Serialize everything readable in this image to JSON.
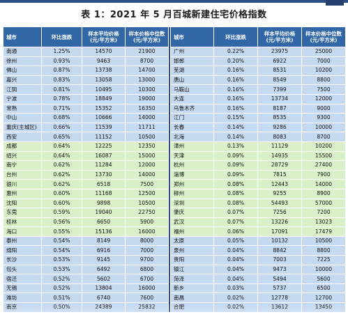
{
  "title": "表 1：2021 年 5 月百城新建住宅价格指数",
  "table": {
    "headers": [
      "城市",
      "环比涨跌",
      "样本平均价格\n(元/平方米)",
      "样本价格中位数\n(元/平方米)"
    ],
    "left": [
      {
        "city": "南通",
        "change": "1.25%",
        "avg": "14570",
        "median": "21900",
        "group": "blue"
      },
      {
        "city": "徐州",
        "change": "0.93%",
        "avg": "9463",
        "median": "8700",
        "group": "blue"
      },
      {
        "city": "佛山",
        "change": "0.87%",
        "avg": "13738",
        "median": "14700",
        "group": "blue"
      },
      {
        "city": "嘉兴",
        "change": "0.83%",
        "avg": "13058",
        "median": "13000",
        "group": "blue"
      },
      {
        "city": "江阴",
        "change": "0.81%",
        "avg": "10495",
        "median": "10300",
        "group": "blue"
      },
      {
        "city": "宁波",
        "change": "0.78%",
        "avg": "18849",
        "median": "19000",
        "group": "blue"
      },
      {
        "city": "常熟",
        "change": "0.71%",
        "avg": "15352",
        "median": "16350",
        "group": "blue"
      },
      {
        "city": "中山",
        "change": "0.68%",
        "avg": "10666",
        "median": "14000",
        "group": "blue"
      },
      {
        "city": "重庆(主城区)",
        "change": "0.66%",
        "avg": "11539",
        "median": "11711",
        "group": "blue"
      },
      {
        "city": "西安",
        "change": "0.65%",
        "avg": "11152",
        "median": "10500",
        "group": "blue"
      },
      {
        "city": "成都",
        "change": "0.64%",
        "avg": "12225",
        "median": "12350",
        "group": "green"
      },
      {
        "city": "绍兴",
        "change": "0.64%",
        "avg": "16087",
        "median": "15000",
        "group": "green"
      },
      {
        "city": "南宁",
        "change": "0.62%",
        "avg": "11284",
        "median": "12000",
        "group": "green"
      },
      {
        "city": "台州",
        "change": "0.62%",
        "avg": "13730",
        "median": "14000",
        "group": "green"
      },
      {
        "city": "银川",
        "change": "0.62%",
        "avg": "6518",
        "median": "7500",
        "group": "green"
      },
      {
        "city": "惠州",
        "change": "0.60%",
        "avg": "11168",
        "median": "12500",
        "group": "green"
      },
      {
        "city": "沈阳",
        "change": "0.60%",
        "avg": "9898",
        "median": "10500",
        "group": "green"
      },
      {
        "city": "东莞",
        "change": "0.59%",
        "avg": "19040",
        "median": "22750",
        "group": "green"
      },
      {
        "city": "桂林",
        "change": "0.56%",
        "avg": "6650",
        "median": "5900",
        "group": "green"
      },
      {
        "city": "海口",
        "change": "0.55%",
        "avg": "15136",
        "median": "16000",
        "group": "green"
      },
      {
        "city": "泰州",
        "change": "0.54%",
        "avg": "8149",
        "median": "8000",
        "group": "blue"
      },
      {
        "city": "绵阳",
        "change": "0.54%",
        "avg": "6916",
        "median": "7000",
        "group": "blue"
      },
      {
        "city": "长沙",
        "change": "0.53%",
        "avg": "9145",
        "median": "9700",
        "group": "blue"
      },
      {
        "city": "包头",
        "change": "0.53%",
        "avg": "6492",
        "median": "6800",
        "group": "blue"
      },
      {
        "city": "宿迁",
        "change": "0.52%",
        "avg": "5602",
        "median": "6700",
        "group": "blue"
      },
      {
        "city": "无锡",
        "change": "0.52%",
        "avg": "13804",
        "median": "16000",
        "group": "blue"
      },
      {
        "city": "潍坊",
        "change": "0.51%",
        "avg": "6740",
        "median": "7600",
        "group": "blue"
      },
      {
        "city": "南京",
        "change": "0.50%",
        "avg": "24389",
        "median": "25832",
        "group": "blue"
      }
    ],
    "right": [
      {
        "city": "广州",
        "change": "0.22%",
        "avg": "23975",
        "median": "25000"
      },
      {
        "city": "邯郸",
        "change": "0.20%",
        "avg": "6922",
        "median": "7000"
      },
      {
        "city": "芜湖",
        "change": "0.16%",
        "avg": "8531",
        "median": "10200"
      },
      {
        "city": "唐山",
        "change": "0.16%",
        "avg": "8549",
        "median": "8800"
      },
      {
        "city": "马鞍山",
        "change": "0.16%",
        "avg": "7399",
        "median": "7500"
      },
      {
        "city": "大连",
        "change": "0.16%",
        "avg": "13734",
        "median": "12000"
      },
      {
        "city": "乌鲁木齐",
        "change": "0.16%",
        "avg": "8187",
        "median": "9000"
      },
      {
        "city": "江门",
        "change": "0.15%",
        "avg": "8535",
        "median": "9300"
      },
      {
        "city": "长春",
        "change": "0.14%",
        "avg": "9286",
        "median": "10000"
      },
      {
        "city": "北海",
        "change": "0.14%",
        "avg": "8083",
        "median": "8700"
      },
      {
        "city": "漳州",
        "change": "0.13%",
        "avg": "11129",
        "median": "10200"
      },
      {
        "city": "天津",
        "change": "0.09%",
        "avg": "14935",
        "median": "15500"
      },
      {
        "city": "杭州",
        "change": "0.09%",
        "avg": "28729",
        "median": "27400"
      },
      {
        "city": "淄博",
        "change": "0.09%",
        "avg": "7815",
        "median": "7900"
      },
      {
        "city": "郑州",
        "change": "0.08%",
        "avg": "12443",
        "median": "14000"
      },
      {
        "city": "柳州",
        "change": "0.08%",
        "avg": "9255",
        "median": "8900"
      },
      {
        "city": "深圳",
        "change": "0.08%",
        "avg": "54493",
        "median": "57000"
      },
      {
        "city": "肇庆",
        "change": "0.07%",
        "avg": "7256",
        "median": "7200"
      },
      {
        "city": "武汉",
        "change": "0.07%",
        "avg": "13226",
        "median": "13023"
      },
      {
        "city": "福州",
        "change": "0.06%",
        "avg": "17091",
        "median": "17479"
      },
      {
        "city": "太原",
        "change": "0.05%",
        "avg": "10132",
        "median": "10500"
      },
      {
        "city": "泉州",
        "change": "0.04%",
        "avg": "8842",
        "median": "8800"
      },
      {
        "city": "贵阳",
        "change": "0.04%",
        "avg": "7003",
        "median": "7225"
      },
      {
        "city": "镇江",
        "change": "0.04%",
        "avg": "9473",
        "median": "10000"
      },
      {
        "city": "菏泽",
        "change": "0.04%",
        "avg": "5494",
        "median": "5600"
      },
      {
        "city": "新乡",
        "change": "0.03%",
        "avg": "5737",
        "median": "6500"
      },
      {
        "city": "南昌",
        "change": "0.02%",
        "avg": "12778",
        "median": "12700"
      },
      {
        "city": "合肥",
        "change": "0.02%",
        "avg": "13612",
        "median": "13450"
      }
    ]
  }
}
